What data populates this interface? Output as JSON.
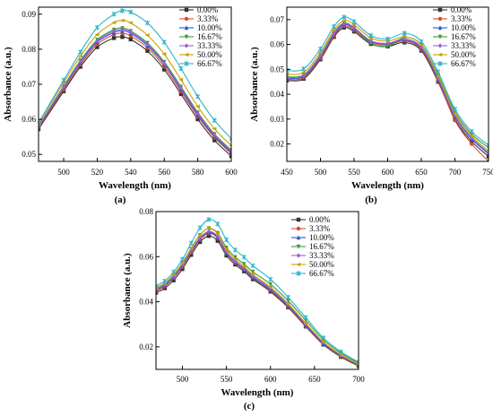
{
  "chart_data": [
    {
      "type": "line",
      "panel_label": "(a)",
      "xlabel": "Wavelength (nm)",
      "ylabel": "Absorbance (a.u.)",
      "xlim": [
        485,
        600
      ],
      "ylim": [
        0.048,
        0.092
      ],
      "xticks": [
        500,
        520,
        540,
        560,
        580,
        600
      ],
      "yticks": [
        0.05,
        0.06,
        0.07,
        0.08,
        0.09
      ],
      "ytick_labels": [
        "0.05",
        "0.06",
        "0.07",
        "0.08",
        "0.09"
      ],
      "grid": false,
      "legend_position": "top-right",
      "x": [
        485,
        500,
        510,
        520,
        530,
        535,
        540,
        550,
        560,
        570,
        580,
        590,
        600
      ],
      "series": [
        {
          "name": "0.00%",
          "color": "#333333",
          "values": [
            0.0572,
            0.068,
            0.075,
            0.0806,
            0.0832,
            0.0835,
            0.0828,
            0.0795,
            0.0742,
            0.0672,
            0.06,
            0.054,
            0.0495
          ]
        },
        {
          "name": "3.33%",
          "color": "#d94a2b",
          "values": [
            0.0575,
            0.0685,
            0.0756,
            0.0814,
            0.0842,
            0.0845,
            0.0838,
            0.0804,
            0.075,
            0.068,
            0.0608,
            0.0548,
            0.0502
          ]
        },
        {
          "name": "10.00%",
          "color": "#2a56d4",
          "values": [
            0.0578,
            0.069,
            0.0762,
            0.082,
            0.0848,
            0.0852,
            0.0845,
            0.081,
            0.0757,
            0.0686,
            0.0613,
            0.0552,
            0.0506
          ]
        },
        {
          "name": "16.67%",
          "color": "#3a9a3a",
          "values": [
            0.0582,
            0.0695,
            0.0768,
            0.0827,
            0.0856,
            0.086,
            0.0852,
            0.0818,
            0.0764,
            0.0693,
            0.062,
            0.0558,
            0.0512
          ]
        },
        {
          "name": "33.33%",
          "color": "#9a5fd6",
          "values": [
            0.058,
            0.0692,
            0.0765,
            0.0824,
            0.0852,
            0.0856,
            0.0849,
            0.0814,
            0.076,
            0.069,
            0.0617,
            0.0555,
            0.0509
          ]
        },
        {
          "name": "50.00%",
          "color": "#c9a100",
          "values": [
            0.0588,
            0.0705,
            0.078,
            0.0842,
            0.0876,
            0.0882,
            0.0875,
            0.084,
            0.0786,
            0.0713,
            0.0637,
            0.0573,
            0.0525
          ]
        },
        {
          "name": "66.67%",
          "color": "#2cb5c9",
          "values": [
            0.059,
            0.0712,
            0.0792,
            0.0862,
            0.09,
            0.091,
            0.0906,
            0.0875,
            0.082,
            0.0745,
            0.0665,
            0.0597,
            0.0545
          ]
        }
      ]
    },
    {
      "type": "line",
      "panel_label": "(b)",
      "xlabel": "Wavelength (nm)",
      "ylabel": "Absorbance (a.u.)",
      "xlim": [
        450,
        750
      ],
      "ylim": [
        0.013,
        0.075
      ],
      "xticks": [
        450,
        500,
        550,
        600,
        650,
        700,
        750
      ],
      "yticks": [
        0.02,
        0.03,
        0.04,
        0.05,
        0.06,
        0.07
      ],
      "ytick_labels": [
        "0.02",
        "0.03",
        "0.04",
        "0.05",
        "0.06",
        "0.07"
      ],
      "grid": false,
      "legend_position": "top-right",
      "x": [
        450,
        475,
        500,
        520,
        535,
        550,
        575,
        600,
        625,
        650,
        675,
        700,
        725,
        750
      ],
      "series": [
        {
          "name": "0.00%",
          "color": "#333333",
          "values": [
            0.0455,
            0.0462,
            0.054,
            0.063,
            0.0668,
            0.0652,
            0.0602,
            0.0592,
            0.0608,
            0.0575,
            0.045,
            0.03,
            0.021,
            0.015
          ]
        },
        {
          "name": "3.33%",
          "color": "#d94a2b",
          "values": [
            0.046,
            0.0467,
            0.0545,
            0.0636,
            0.0674,
            0.0658,
            0.0608,
            0.0598,
            0.0614,
            0.058,
            0.0455,
            0.0295,
            0.02,
            0.013
          ]
        },
        {
          "name": "10.00%",
          "color": "#2a56d4",
          "values": [
            0.0465,
            0.0472,
            0.0551,
            0.0642,
            0.068,
            0.0664,
            0.0612,
            0.0602,
            0.0618,
            0.0585,
            0.046,
            0.031,
            0.022,
            0.016
          ]
        },
        {
          "name": "16.67%",
          "color": "#3a9a3a",
          "values": [
            0.047,
            0.0478,
            0.0558,
            0.0648,
            0.0686,
            0.0668,
            0.0605,
            0.0592,
            0.0628,
            0.06,
            0.0478,
            0.033,
            0.024,
            0.0185
          ]
        },
        {
          "name": "33.33%",
          "color": "#9a5fd6",
          "values": [
            0.0468,
            0.0475,
            0.0555,
            0.0645,
            0.0684,
            0.0668,
            0.0615,
            0.0605,
            0.0622,
            0.059,
            0.0465,
            0.0315,
            0.0225,
            0.0165
          ]
        },
        {
          "name": "50.00%",
          "color": "#c9a100",
          "values": [
            0.048,
            0.0488,
            0.0568,
            0.0658,
            0.0696,
            0.068,
            0.0626,
            0.0614,
            0.063,
            0.0598,
            0.0472,
            0.0322,
            0.0232,
            0.0172
          ]
        },
        {
          "name": "66.67%",
          "color": "#2cb5c9",
          "values": [
            0.0495,
            0.0502,
            0.0582,
            0.0672,
            0.071,
            0.0692,
            0.0636,
            0.0622,
            0.0645,
            0.0612,
            0.049,
            0.034,
            0.025,
            0.0195
          ]
        }
      ]
    },
    {
      "type": "line",
      "panel_label": "(c)",
      "xlabel": "Wavelength (nm)",
      "ylabel": "Absorbance (a.u.)",
      "xlim": [
        470,
        700
      ],
      "ylim": [
        0.01,
        0.08
      ],
      "xticks": [
        500,
        550,
        600,
        650,
        700
      ],
      "yticks": [
        0.02,
        0.04,
        0.06,
        0.08
      ],
      "ytick_labels": [
        "0.02",
        "0.04",
        "0.06",
        "0.08"
      ],
      "grid": false,
      "legend_position": "top-right",
      "x": [
        470,
        480,
        490,
        500,
        510,
        520,
        530,
        540,
        550,
        560,
        570,
        580,
        600,
        620,
        640,
        660,
        680,
        700
      ],
      "series": [
        {
          "name": "0.00%",
          "color": "#333333",
          "values": [
            0.044,
            0.046,
            0.0495,
            0.0545,
            0.0608,
            0.0665,
            0.0692,
            0.067,
            0.0605,
            0.0565,
            0.0535,
            0.05,
            0.0445,
            0.0375,
            0.029,
            0.021,
            0.0155,
            0.0115
          ]
        },
        {
          "name": "3.33%",
          "color": "#d94a2b",
          "values": [
            0.0448,
            0.0468,
            0.0505,
            0.0555,
            0.0618,
            0.0675,
            0.0703,
            0.0682,
            0.0615,
            0.0573,
            0.0542,
            0.0506,
            0.045,
            0.0378,
            0.0292,
            0.0212,
            0.0157,
            0.0117
          ]
        },
        {
          "name": "10.00%",
          "color": "#2a56d4",
          "values": [
            0.0452,
            0.0472,
            0.0509,
            0.056,
            0.0622,
            0.068,
            0.0707,
            0.0686,
            0.0618,
            0.0576,
            0.0545,
            0.0509,
            0.0454,
            0.0382,
            0.0297,
            0.0215,
            0.016,
            0.012
          ]
        },
        {
          "name": "16.67%",
          "color": "#3a9a3a",
          "values": [
            0.046,
            0.048,
            0.0518,
            0.057,
            0.0635,
            0.0696,
            0.0726,
            0.0705,
            0.064,
            0.0598,
            0.0568,
            0.0533,
            0.0478,
            0.0405,
            0.0318,
            0.0232,
            0.0172,
            0.0128
          ]
        },
        {
          "name": "33.33%",
          "color": "#9a5fd6",
          "values": [
            0.0455,
            0.0475,
            0.0512,
            0.0563,
            0.0626,
            0.0684,
            0.0712,
            0.069,
            0.0622,
            0.058,
            0.055,
            0.0515,
            0.046,
            0.0388,
            0.0302,
            0.022,
            0.0163,
            0.0122
          ]
        },
        {
          "name": "50.00%",
          "color": "#c9a100",
          "values": [
            0.0462,
            0.0483,
            0.0521,
            0.0573,
            0.0638,
            0.0697,
            0.0725,
            0.0702,
            0.0632,
            0.0588,
            0.0557,
            0.0521,
            0.0465,
            0.0392,
            0.0305,
            0.0222,
            0.0165,
            0.0123
          ]
        },
        {
          "name": "66.67%",
          "color": "#2cb5c9",
          "values": [
            0.047,
            0.0492,
            0.0532,
            0.0588,
            0.066,
            0.0728,
            0.0765,
            0.0745,
            0.0675,
            0.063,
            0.0598,
            0.056,
            0.05,
            0.042,
            0.033,
            0.024,
            0.0178,
            0.0132
          ]
        }
      ]
    }
  ]
}
